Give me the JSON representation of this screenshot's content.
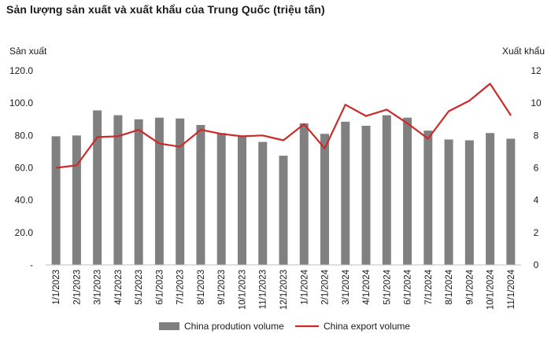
{
  "chart_data": {
    "type": "bar+line",
    "title": "Sản lượng sản xuất và xuất khẩu của Trung Quốc (triệu tấn)",
    "y_left_label": "Sản xuất",
    "y_right_label": "Xuất khẩu",
    "categories": [
      "1/1/2023",
      "2/1/2023",
      "3/1/2023",
      "4/1/2023",
      "5/1/2023",
      "6/1/2023",
      "7/1/2023",
      "8/1/2023",
      "9/1/2023",
      "10/1/2023",
      "11/1/2023",
      "12/1/2023",
      "1/1/2024",
      "2/1/2024",
      "3/1/2024",
      "4/1/2024",
      "5/1/2024",
      "6/1/2024",
      "7/1/2024",
      "8/1/2024",
      "9/1/2024",
      "10/1/2024",
      "11/1/2024"
    ],
    "y_left_ticks": [
      "-",
      "20.0",
      "40.0",
      "60.0",
      "80.0",
      "100.0",
      "120.0"
    ],
    "y_right_ticks": [
      "0",
      "2",
      "4",
      "6",
      "8",
      "10",
      "12"
    ],
    "y_left_range": [
      0,
      120
    ],
    "y_right_range": [
      0,
      12
    ],
    "grid": false,
    "legend_position": "bottom",
    "series": [
      {
        "name": "China prodution volume",
        "type": "bar",
        "axis": "left",
        "color": "#808080",
        "values": [
          79.5,
          80.0,
          95.5,
          92.5,
          90.0,
          91.0,
          90.5,
          86.5,
          81.5,
          79.5,
          76.0,
          67.5,
          87.5,
          81.0,
          88.5,
          86.0,
          92.5,
          91.0,
          83.0,
          77.5,
          77.0,
          81.5,
          78.0
        ]
      },
      {
        "name": "China export volume",
        "type": "line",
        "axis": "right",
        "color": "#cc2a2a",
        "values": [
          6.0,
          6.15,
          7.9,
          7.95,
          8.35,
          7.5,
          7.3,
          8.35,
          8.1,
          7.95,
          8.0,
          7.7,
          8.7,
          7.2,
          9.9,
          9.2,
          9.6,
          8.75,
          7.8,
          9.5,
          10.15,
          11.2,
          9.25
        ]
      }
    ]
  }
}
